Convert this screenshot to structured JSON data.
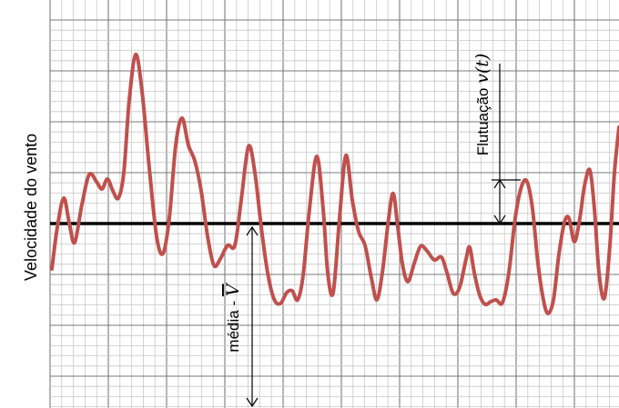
{
  "y_label": "Velocidade do vento",
  "mean_label": "média - ",
  "mean_symbol": "V",
  "fluct_label": "Flutuação ",
  "fluct_symbol": "v(t)",
  "colors": {
    "signal": "#c0504d",
    "axis": "#000000",
    "grid_major": "#7a7a7a",
    "grid_minor": "#c8c8c8"
  }
}
